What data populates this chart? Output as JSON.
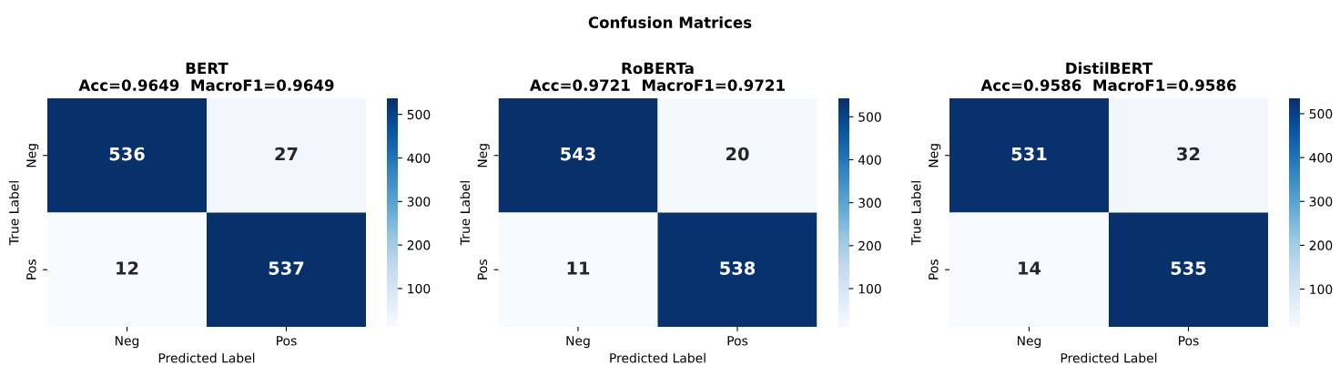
{
  "chart_data": [
    {
      "type": "other",
      "title": "Confusion Matrices"
    },
    {
      "type": "heatmap",
      "title": "BERT\nAcc=0.9649  MacroF1=0.9649",
      "xlabel": "Predicted Label",
      "ylabel": "True Label",
      "categories": [
        "Neg",
        "Pos"
      ],
      "y_categories": [
        "Neg",
        "Pos"
      ],
      "cells": [
        [
          536,
          27
        ],
        [
          12,
          537
        ]
      ],
      "data_labels": true,
      "clim": [
        12,
        537
      ],
      "cticks": [
        100,
        200,
        300,
        400,
        500
      ]
    },
    {
      "type": "heatmap",
      "title": "RoBERTa\nAcc=0.9721  MacroF1=0.9721",
      "xlabel": "Predicted Label",
      "ylabel": "True Label",
      "categories": [
        "Neg",
        "Pos"
      ],
      "y_categories": [
        "Neg",
        "Pos"
      ],
      "cells": [
        [
          543,
          20
        ],
        [
          11,
          538
        ]
      ],
      "data_labels": true,
      "clim": [
        11,
        543
      ],
      "cticks": [
        100,
        200,
        300,
        400,
        500
      ]
    },
    {
      "type": "heatmap",
      "title": "DistilBERT\nAcc=0.9586  MacroF1=0.9586",
      "xlabel": "Predicted Label",
      "ylabel": "True Label",
      "categories": [
        "Neg",
        "Pos"
      ],
      "y_categories": [
        "Neg",
        "Pos"
      ],
      "cells": [
        [
          531,
          32
        ],
        [
          14,
          535
        ]
      ],
      "data_labels": true,
      "clim": [
        14,
        535
      ],
      "cticks": [
        100,
        200,
        300,
        400,
        500
      ]
    }
  ]
}
